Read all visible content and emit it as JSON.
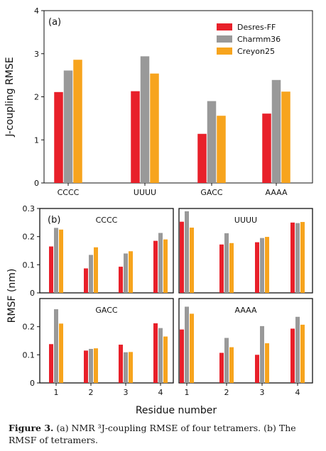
{
  "colors": {
    "desres": "#e8202a",
    "charmm": "#999999",
    "creyon": "#f7a41d"
  },
  "chart_data": [
    {
      "type": "bar",
      "panel_label": "(a)",
      "title": "",
      "xlabel": "",
      "ylabel": "J-coupling RMSE",
      "ylim": [
        0,
        4
      ],
      "yticks": [
        "0",
        "1",
        "2",
        "3",
        "4"
      ],
      "categories": [
        "CCCC",
        "UUUU",
        "GACC",
        "AAAA"
      ],
      "legend_position": "top-right",
      "series": [
        {
          "name": "Desres-FF",
          "values": [
            2.11,
            2.13,
            1.14,
            1.61
          ]
        },
        {
          "name": "Charmm36",
          "values": [
            2.61,
            2.94,
            1.9,
            2.39
          ]
        },
        {
          "name": "Creyon25",
          "values": [
            2.86,
            2.54,
            1.56,
            2.12
          ]
        }
      ]
    },
    {
      "type": "bar",
      "panel_label": "(b)",
      "xlabel": "Residue number",
      "ylabel": "RMSF (nm)",
      "ylim": [
        0,
        0.3
      ],
      "yticks": [
        "0",
        "0.1",
        "0.2",
        "0.3"
      ],
      "categories": [
        "1",
        "2",
        "3",
        "4"
      ],
      "subplots": [
        {
          "title": "CCCC",
          "series": [
            {
              "name": "Desres-FF",
              "values": [
                0.165,
                0.087,
                0.093,
                0.185
              ]
            },
            {
              "name": "Charmm36",
              "values": [
                0.231,
                0.135,
                0.14,
                0.213
              ]
            },
            {
              "name": "Creyon25",
              "values": [
                0.225,
                0.162,
                0.148,
                0.19
              ]
            }
          ]
        },
        {
          "title": "UUUU",
          "series": [
            {
              "name": "Desres-FF",
              "values": [
                0.253,
                0.172,
                0.18,
                0.25
              ]
            },
            {
              "name": "Charmm36",
              "values": [
                0.29,
                0.212,
                0.195,
                0.248
              ]
            },
            {
              "name": "Creyon25",
              "values": [
                0.232,
                0.177,
                0.199,
                0.252
              ]
            }
          ]
        },
        {
          "title": "GACC",
          "series": [
            {
              "name": "Desres-FF",
              "values": [
                0.138,
                0.115,
                0.136,
                0.212
              ]
            },
            {
              "name": "Charmm36",
              "values": [
                0.262,
                0.121,
                0.109,
                0.195
              ]
            },
            {
              "name": "Creyon25",
              "values": [
                0.211,
                0.123,
                0.11,
                0.165
              ]
            }
          ]
        },
        {
          "title": "AAAA",
          "series": [
            {
              "name": "Desres-FF",
              "values": [
                0.19,
                0.107,
                0.1,
                0.193
              ]
            },
            {
              "name": "Charmm36",
              "values": [
                0.271,
                0.16,
                0.202,
                0.235
              ]
            },
            {
              "name": "Creyon25",
              "values": [
                0.246,
                0.127,
                0.141,
                0.207
              ]
            }
          ]
        }
      ]
    }
  ],
  "caption": {
    "label": "Figure 3.",
    "text": " (a) NMR ³J-coupling RMSE of four tetramers. (b) The RMSF of tetramers."
  }
}
